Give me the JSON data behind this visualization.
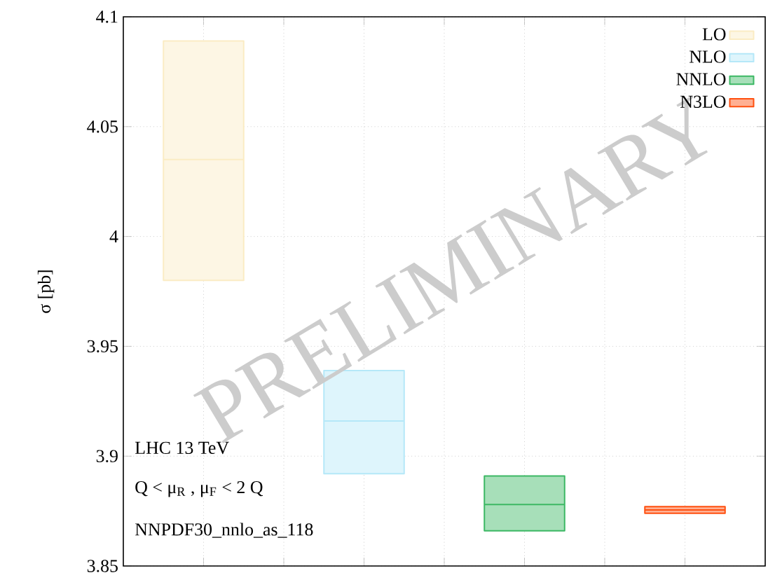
{
  "chart_data": {
    "type": "box",
    "ylabel": "σ [pb]",
    "categories": [
      null,
      null,
      null,
      null
    ],
    "ylim": [
      3.85,
      4.1
    ],
    "yticks": [
      3.85,
      3.9,
      3.95,
      4,
      4.05,
      4.1
    ],
    "tick_labels": "y",
    "grid": true,
    "legend": "top right",
    "series": [
      {
        "name": "LO",
        "color": "#fbecc4",
        "boxes": [
          {
            "low": 3.98,
            "q1": 3.98,
            "median": 4.035,
            "q3": 4.089,
            "high": 4.089
          },
          null,
          null,
          null
        ]
      },
      {
        "name": "NLO",
        "color": "#b5e8f8",
        "boxes": [
          null,
          {
            "low": 3.892,
            "q1": 3.892,
            "median": 3.916,
            "q3": 3.939,
            "high": 3.939
          },
          null,
          null
        ]
      },
      {
        "name": "NNLO",
        "color": "#3cb864",
        "boxes": [
          null,
          null,
          {
            "low": 3.866,
            "q1": 3.866,
            "median": 3.878,
            "q3": 3.891,
            "high": 3.891
          },
          null
        ]
      },
      {
        "name": "N3LO",
        "color": "#ff5010",
        "boxes": [
          null,
          null,
          null,
          {
            "low": 3.874,
            "q1": 3.874,
            "median": 3.8755,
            "q3": 3.877,
            "high": 3.877
          }
        ]
      }
    ],
    "annotations": [
      "LHC 13 TeV",
      "Q < μ$_{R}$ , μ$_{F}$ < 2 Q",
      "NNPDF30_nnlo_as_118",
      "PRELIMINARY"
    ]
  }
}
